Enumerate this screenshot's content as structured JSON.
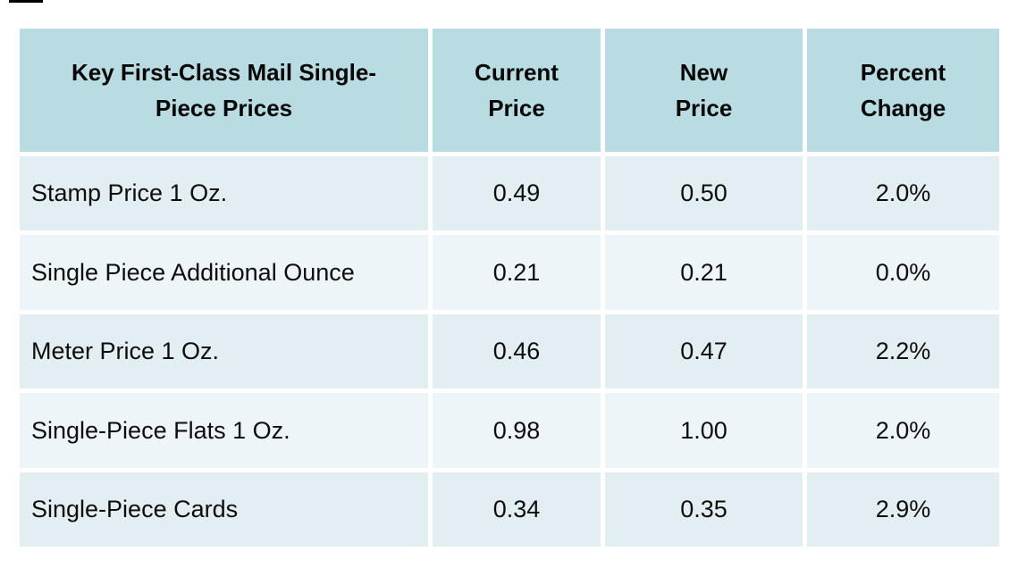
{
  "table": {
    "title": "Key First-Class Mail Single-\nPiece Prices",
    "columns": [
      {
        "label": "Current\nPrice"
      },
      {
        "label": "New\nPrice"
      },
      {
        "label": "Percent\nChange"
      }
    ],
    "rows": [
      {
        "label": "Stamp Price 1 Oz.",
        "current": "0.49",
        "new": "0.50",
        "change": "2.0%"
      },
      {
        "label": "Single Piece Additional Ounce",
        "current": "0.21",
        "new": "0.21",
        "change": "0.0%"
      },
      {
        "label": "Meter Price 1 Oz.",
        "current": "0.46",
        "new": "0.47",
        "change": "2.2%"
      },
      {
        "label": "Single-Piece Flats 1 Oz.",
        "current": "0.98",
        "new": "1.00",
        "change": "2.0%"
      },
      {
        "label": "Single-Piece Cards",
        "current": "0.34",
        "new": "0.35",
        "change": "2.9%"
      }
    ]
  },
  "colors": {
    "header_bg": "#b8dce2",
    "row_odd_bg": "#e3eef2",
    "row_even_bg": "#eef5f8",
    "gridline": "#ffffff",
    "text": "#0d0d0d",
    "page_bg": "#ffffff"
  },
  "chart_data": {
    "type": "table",
    "title": "Key First-Class Mail Single-Piece Prices",
    "columns": [
      "Key First-Class Mail Single-Piece Prices",
      "Current Price",
      "New Price",
      "Percent Change"
    ],
    "rows": [
      [
        "Stamp Price 1 Oz.",
        0.49,
        0.5,
        "2.0%"
      ],
      [
        "Single Piece Additional Ounce",
        0.21,
        0.21,
        "0.0%"
      ],
      [
        "Meter Price 1 Oz.",
        0.46,
        0.47,
        "2.2%"
      ],
      [
        "Single-Piece Flats 1 Oz.",
        0.98,
        1.0,
        "2.0%"
      ],
      [
        "Single-Piece Cards",
        0.34,
        0.35,
        "2.9%"
      ]
    ]
  }
}
